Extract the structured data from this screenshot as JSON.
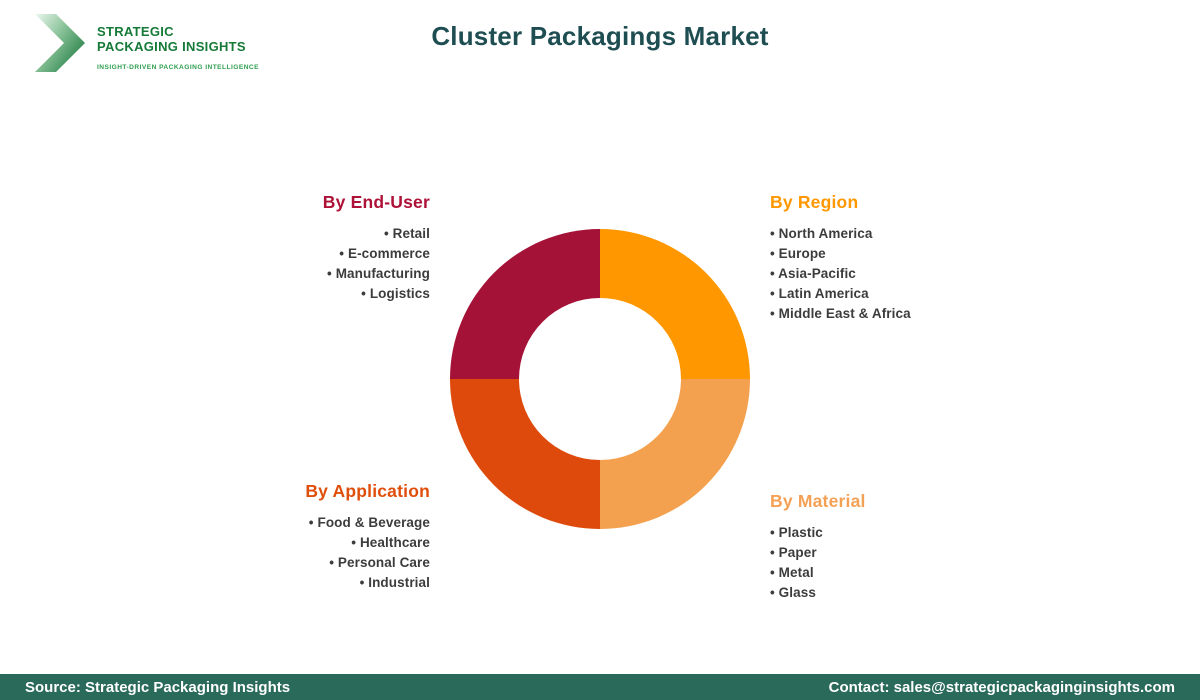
{
  "header": {
    "logo": {
      "line1": "STRATEGIC",
      "line2": "PACKAGING INSIGHTS",
      "tagline": "INSIGHT-DRIVEN PACKAGING INTELLIGENCE",
      "brand_green": "#157A38",
      "tagline_green": "#2F9E4F"
    },
    "title": "Cluster Packagings Market",
    "title_color": "#1F4E52"
  },
  "sections": {
    "end_user": {
      "heading": "By End-User",
      "color": "#AE1238",
      "items": [
        "Retail",
        "E-commerce",
        "Manufacturing",
        "Logistics"
      ]
    },
    "region": {
      "heading": "By Region",
      "color": "#FF9800",
      "items": [
        "North America",
        "Europe",
        "Asia-Pacific",
        "Latin America",
        "Middle East & Africa"
      ]
    },
    "application": {
      "heading": "By Application",
      "color": "#E04E0C",
      "items": [
        "Food & Beverage",
        "Healthcare",
        "Personal Care",
        "Industrial"
      ]
    },
    "material": {
      "heading": "By Material",
      "color": "#F4A155",
      "items": [
        "Plastic",
        "Paper",
        "Metal",
        "Glass"
      ]
    }
  },
  "chart_data": {
    "type": "pie",
    "style": "donut",
    "title": "Cluster Packagings Market segmentation donut",
    "start_angle_deg": 0,
    "inner_radius_ratio": 0.54,
    "legend_position": "around-chart",
    "segments": [
      {
        "name": "By Region",
        "value": 25,
        "color": "#FF9800",
        "position": "top-right"
      },
      {
        "name": "By Material",
        "value": 25,
        "color": "#F4A14F",
        "position": "bottom-right"
      },
      {
        "name": "By Application",
        "value": 25,
        "color": "#DE4A0C",
        "position": "bottom-left"
      },
      {
        "name": "By End-User",
        "value": 25,
        "color": "#A51237",
        "position": "top-left"
      }
    ]
  },
  "footer": {
    "source": "Source: Strategic Packaging Insights",
    "contact": "Contact: sales@strategicpackaginginsights.com",
    "background": "#2A6A5A"
  }
}
